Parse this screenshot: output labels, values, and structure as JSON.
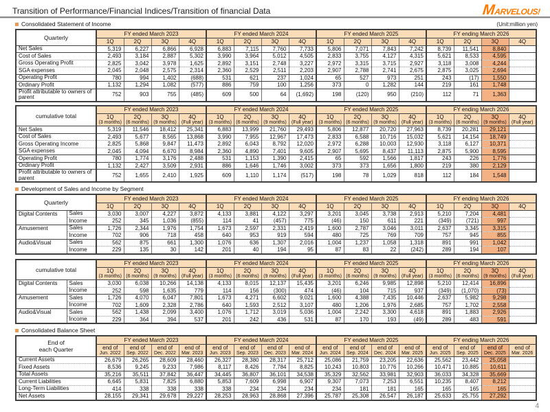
{
  "page": {
    "title": "Transition of Performance/Financial Indices/Transition of financial Data",
    "unit_note": "(Unit:million yen)",
    "page_number": "4",
    "logo": {
      "initial": "M",
      "rest": "ARVELOUS!"
    }
  },
  "sections": {
    "income": "Consolidated Statement of Income",
    "segment": "Development of Sales and Income by Segment",
    "balance": "Consolidated Balance Sheet"
  },
  "colors": {
    "header_fill": "#FADCB9",
    "highlight_fill": "#F4B183",
    "accent": "#E79B54",
    "logo_orange": "#FF7A00"
  },
  "fiscal_years": [
    "FY ended March 2023",
    "FY ended March 2024",
    "FY ended March 2025",
    "FY ending March 2026"
  ],
  "quarter_labels": [
    "1Q",
    "2Q",
    "3Q",
    "4Q"
  ],
  "cumulative_labels": [
    [
      "1Q",
      "(3 months)"
    ],
    [
      "2Q",
      "(6 months)"
    ],
    [
      "3Q",
      "(9 months)"
    ],
    [
      "4Q",
      "(Full year)"
    ]
  ],
  "balance_dates": [
    [
      "end of",
      "Jun. 2022"
    ],
    [
      "end of",
      "Sep. 2022"
    ],
    [
      "end of",
      "Dec. 2022"
    ],
    [
      "end of",
      "Mar. 2023"
    ],
    [
      "end of",
      "Jun. 2023"
    ],
    [
      "end of",
      "Sep. 2023"
    ],
    [
      "end of",
      "Dec. 2023"
    ],
    [
      "end of",
      "Mar. 2024"
    ],
    [
      "end of",
      "Jun. 2024"
    ],
    [
      "end of",
      "Sep. 2024"
    ],
    [
      "end of",
      "Dec. 2024"
    ],
    [
      "end of",
      "Mar. 2025"
    ],
    [
      "end of",
      "Jun. 2025"
    ],
    [
      "end of",
      "Sep. 2025"
    ],
    [
      "end of",
      "Dec. 2025"
    ],
    [
      "end of",
      "Mar. 2026"
    ]
  ],
  "tables": [
    {
      "id": "income-quarterly",
      "corner": "Quarterly",
      "col_set": "quarter",
      "label_widths": [
        117
      ],
      "highlight": 14,
      "rows": [
        {
          "label": "Net Sales",
          "sep": "solid",
          "values": [
            "5,319",
            "6,227",
            "6,866",
            "6,928",
            "6,883",
            "7,115",
            "7,760",
            "7,733",
            "5,806",
            "7,071",
            "7,843",
            "7,242",
            "8,739",
            "11,541",
            "8,840",
            ""
          ]
        },
        {
          "label": "Cost of Sales",
          "sep": "dotted",
          "values": [
            "2,493",
            "3,184",
            "2,887",
            "5,302",
            "3,990",
            "3,964",
            "5,012",
            "4,505",
            "2,833",
            "3,755",
            "4,127",
            "4,315",
            "5,621",
            "8,533",
            "4,595",
            ""
          ]
        },
        {
          "label": "Gross Operating Profit",
          "sep": "dotted",
          "values": [
            "2,825",
            "3,042",
            "3,978",
            "1,625",
            "2,892",
            "3,151",
            "2,748",
            "3,227",
            "2,972",
            "3,315",
            "3,715",
            "2,927",
            "3,118",
            "3,008",
            "4,244",
            ""
          ]
        },
        {
          "label": "SGA expenses",
          "sep": "solid",
          "values": [
            "2,045",
            "2,048",
            "2,575",
            "2,314",
            "2,360",
            "2,529",
            "2,511",
            "2,203",
            "2,907",
            "2,788",
            "2,741",
            "2,675",
            "2,875",
            "3,025",
            "2,694",
            ""
          ]
        },
        {
          "label": "Operating Profit",
          "sep": "solid",
          "values": [
            "780",
            "994",
            "1,402",
            "(688)",
            "531",
            "621",
            "237",
            "1,024",
            "65",
            "527",
            "973",
            "251",
            "243",
            "(17)",
            "1,550",
            ""
          ]
        },
        {
          "label": "Ordinary Profit",
          "sep": "solid",
          "values": [
            "1,132",
            "1,294",
            "1,082",
            "(577)",
            "886",
            "759",
            "100",
            "1,256",
            "373",
            "0",
            "1,282",
            "144",
            "219",
            "161",
            "1,748",
            ""
          ]
        },
        {
          "label": "Profit attributable to owners of parent",
          "sep": "solid",
          "values": [
            "752",
            "903",
            "755",
            "(485)",
            "609",
            "500",
            "64",
            "(1,692)",
            "198",
            "(120)",
            "950",
            "(210)",
            "112",
            "71",
            "1,363",
            ""
          ]
        }
      ]
    },
    {
      "id": "income-cumulative",
      "corner": "cumulative total",
      "col_set": "cumulative",
      "label_widths": [
        117
      ],
      "highlight": 14,
      "rows": [
        {
          "label": "Net Sales",
          "sep": "solid",
          "values": [
            "5,319",
            "11,546",
            "18,412",
            "25,341",
            "6,883",
            "13,999",
            "21,760",
            "29,493",
            "5,806",
            "12,877",
            "20,720",
            "27,963",
            "8,739",
            "20,281",
            "29,121",
            ""
          ]
        },
        {
          "label": "Cost of Sales",
          "sep": "dotted",
          "values": [
            "2,493",
            "5,677",
            "8,565",
            "13,868",
            "3,990",
            "7,955",
            "12,967",
            "17,473",
            "2,833",
            "6,588",
            "10,716",
            "15,032",
            "5,621",
            "14,154",
            "18,749",
            ""
          ]
        },
        {
          "label": "Gross Operating Income",
          "sep": "dotted",
          "values": [
            "2,825",
            "5,868",
            "9,847",
            "11,473",
            "2,892",
            "6,043",
            "8,792",
            "12,020",
            "2,972",
            "6,288",
            "10,003",
            "12,930",
            "3,118",
            "6,127",
            "10,371",
            ""
          ]
        },
        {
          "label": "SGA expenses",
          "sep": "solid",
          "values": [
            "2,045",
            "4,094",
            "6,670",
            "8,984",
            "2,360",
            "4,890",
            "7,401",
            "9,605",
            "2,907",
            "5,695",
            "8,437",
            "11,113",
            "2,875",
            "5,900",
            "8,595",
            ""
          ]
        },
        {
          "label": "Operating Profit",
          "sep": "solid",
          "values": [
            "780",
            "1,774",
            "3,176",
            "2,488",
            "531",
            "1,153",
            "1,390",
            "2,415",
            "65",
            "592",
            "1,566",
            "1,817",
            "243",
            "226",
            "1,776",
            ""
          ]
        },
        {
          "label": "Ordinary Profit",
          "sep": "solid",
          "values": [
            "1,132",
            "2,427",
            "3,509",
            "2,931",
            "886",
            "1,646",
            "1,746",
            "3,002",
            "373",
            "373",
            "1,656",
            "1,800",
            "219",
            "380",
            "2,129",
            ""
          ]
        },
        {
          "label": "Profit attributable to owners of parent",
          "sep": "solid",
          "values": [
            "752",
            "1,655",
            "2,410",
            "1,925",
            "609",
            "1,110",
            "1,174",
            "(517)",
            "198",
            "78",
            "1,029",
            "818",
            "112",
            "184",
            "1,548",
            ""
          ]
        }
      ]
    },
    {
      "id": "segment-quarterly",
      "corner": "Quarterly",
      "col_set": "quarter",
      "label_widths": [
        74,
        43
      ],
      "highlight": 14,
      "rows": [
        {
          "group": "Digital Contents",
          "label": "Sales",
          "sep": "dotted",
          "values": [
            "3,030",
            "3,007",
            "4,227",
            "3,872",
            "4,133",
            "3,881",
            "4,122",
            "3,297",
            "3,201",
            "3,045",
            "3,738",
            "2,913",
            "5,210",
            "7,204",
            "4,481",
            ""
          ]
        },
        {
          "label": "Income",
          "sep": "solid",
          "values": [
            "252",
            "345",
            "1,036",
            "(855)",
            "114",
            "41",
            "(457)",
            "775",
            "(46)",
            "150",
            "611",
            "221",
            "(349)",
            "(721)",
            "997",
            ""
          ]
        },
        {
          "group": "Amusement",
          "label": "Sales",
          "sep": "dotted",
          "values": [
            "1,726",
            "2,344",
            "1,976",
            "1,754",
            "1,673",
            "2,597",
            "2,331",
            "2,419",
            "1,600",
            "2,787",
            "3,046",
            "3,011",
            "2,637",
            "3,345",
            "3,315",
            ""
          ]
        },
        {
          "label": "Income",
          "sep": "solid",
          "values": [
            "702",
            "906",
            "718",
            "458",
            "640",
            "953",
            "919",
            "594",
            "480",
            "725",
            "769",
            "709",
            "757",
            "945",
            "855",
            ""
          ]
        },
        {
          "group": "Audio&Visual",
          "label": "Sales",
          "sep": "dotted",
          "values": [
            "562",
            "875",
            "661",
            "1,300",
            "1,076",
            "636",
            "1,307",
            "2,016",
            "1,004",
            "1,237",
            "1,058",
            "1,318",
            "891",
            "991",
            "1,042",
            ""
          ]
        },
        {
          "label": "Income",
          "sep": "solid",
          "values": [
            "229",
            "135",
            "30",
            "142",
            "201",
            "40",
            "194",
            "95",
            "87",
            "83",
            "22",
            "(242)",
            "289",
            "194",
            "107",
            ""
          ]
        }
      ]
    },
    {
      "id": "segment-cumulative",
      "corner": "cumulative total",
      "col_set": "cumulative",
      "label_widths": [
        74,
        43
      ],
      "highlight": 14,
      "rows": [
        {
          "group": "Digital Contents",
          "label": "Sales",
          "sep": "dotted",
          "values": [
            "3,030",
            "6,038",
            "10,266",
            "14,138",
            "4,133",
            "8,015",
            "12,137",
            "15,435",
            "3,201",
            "6,246",
            "9,985",
            "12,898",
            "5,210",
            "12,414",
            "16,896",
            ""
          ]
        },
        {
          "label": "Income",
          "sep": "solid",
          "values": [
            "252",
            "598",
            "1,635",
            "779",
            "114",
            "156",
            "(300)",
            "474",
            "(46)",
            "104",
            "715",
            "937",
            "(349)",
            "(1,070)",
            "(73)",
            ""
          ]
        },
        {
          "group": "Amusement",
          "label": "Sales",
          "sep": "dotted",
          "values": [
            "1,726",
            "4,070",
            "6,047",
            "7,801",
            "1,673",
            "4,271",
            "6,602",
            "9,021",
            "1,600",
            "4,388",
            "7,435",
            "10,446",
            "2,637",
            "5,982",
            "9,298",
            ""
          ]
        },
        {
          "label": "Income",
          "sep": "solid",
          "values": [
            "702",
            "1,609",
            "2,328",
            "2,786",
            "640",
            "1,593",
            "2,512",
            "3,107",
            "480",
            "1,206",
            "1,976",
            "2,685",
            "757",
            "1,702",
            "2,558",
            ""
          ]
        },
        {
          "group": "Audio&Visual",
          "label": "Sales",
          "sep": "dotted",
          "values": [
            "562",
            "1,438",
            "2,099",
            "3,400",
            "1,076",
            "1,712",
            "3,019",
            "5,036",
            "1,004",
            "2,242",
            "3,300",
            "4,618",
            "891",
            "1,883",
            "2,926",
            ""
          ]
        },
        {
          "label": "Income",
          "sep": "solid",
          "values": [
            "229",
            "364",
            "394",
            "537",
            "201",
            "242",
            "436",
            "531",
            "87",
            "170",
            "193",
            "(49)",
            "289",
            "483",
            "591",
            ""
          ]
        }
      ]
    },
    {
      "id": "balance-sheet",
      "corner": "End of\neach Quarter",
      "col_set": "balance",
      "label_widths": [
        117
      ],
      "highlight": 14,
      "rows": [
        {
          "label": "Current Assets",
          "sep": "dotted",
          "values": [
            "26,679",
            "26,265",
            "28,609",
            "28,460",
            "26,327",
            "28,380",
            "28,317",
            "25,712",
            "25,086",
            "21,759",
            "23,205",
            "22,636",
            "25,562",
            "23,442",
            "25,058",
            ""
          ]
        },
        {
          "label": "Fixed Assets",
          "sep": "solid",
          "values": [
            "8,536",
            "9,245",
            "9,233",
            "7,986",
            "8,117",
            "8,426",
            "7,784",
            "8,825",
            "10,243",
            "10,803",
            "10,776",
            "10,266",
            "10,471",
            "10,885",
            "10,611",
            ""
          ]
        },
        {
          "label": "Total Assets",
          "sep": "solid",
          "values": [
            "35,216",
            "35,511",
            "37,842",
            "36,447",
            "34,445",
            "36,807",
            "36,101",
            "34,538",
            "35,329",
            "32,562",
            "33,981",
            "32,903",
            "36,033",
            "34,328",
            "35,669",
            ""
          ]
        },
        {
          "label": "Current Liabilities",
          "sep": "dotted",
          "values": [
            "6,645",
            "5,831",
            "7,825",
            "6,880",
            "5,853",
            "7,609",
            "6,998",
            "6,907",
            "9,307",
            "7,073",
            "7,253",
            "6,551",
            "10,235",
            "8,407",
            "8,212",
            ""
          ]
        },
        {
          "label": "Long-Term Liabilities",
          "sep": "solid",
          "values": [
            "414",
            "338",
            "338",
            "338",
            "338",
            "234",
            "234",
            "234",
            "234",
            "181",
            "181",
            "165",
            "165",
            "165",
            "165",
            ""
          ]
        },
        {
          "label": "Net Assets",
          "sep": "solid",
          "values": [
            "28,155",
            "29,341",
            "29,678",
            "29,227",
            "28,253",
            "28,963",
            "28,868",
            "27,396",
            "25,787",
            "25,308",
            "26,547",
            "26,187",
            "25,633",
            "25,755",
            "27,292",
            ""
          ]
        }
      ]
    }
  ]
}
